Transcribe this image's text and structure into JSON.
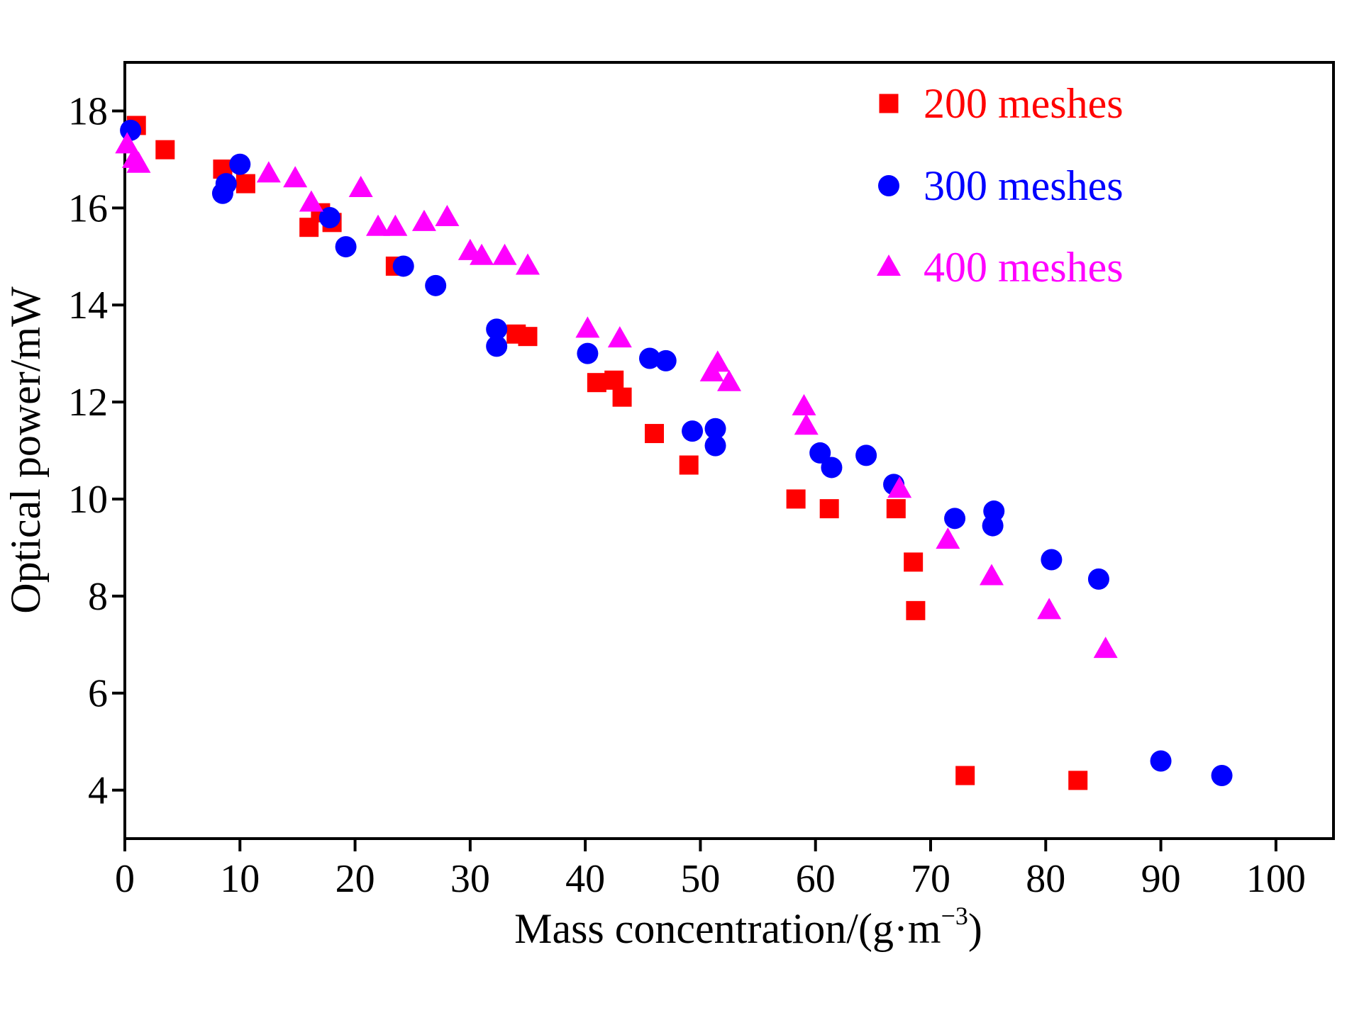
{
  "chart_data": {
    "type": "scatter",
    "title": "",
    "xlabel": "Mass concentration/(g·m",
    "xlabel_sup": "−3",
    "xlabel_end": ")",
    "ylabel": "Optical power/mW",
    "xlim": [
      0,
      105
    ],
    "ylim": [
      3,
      19
    ],
    "xticks": [
      0,
      10,
      20,
      30,
      40,
      50,
      60,
      70,
      80,
      90,
      100
    ],
    "yticks": [
      4,
      6,
      8,
      10,
      12,
      14,
      16,
      18
    ],
    "xtick_labels": [
      "0",
      "10",
      "20",
      "30",
      "40",
      "50",
      "60",
      "70",
      "80",
      "90",
      "100"
    ],
    "ytick_labels": [
      "4",
      "6",
      "8",
      "10",
      "12",
      "14",
      "16",
      "18"
    ],
    "grid": false,
    "legend_position": "top-right",
    "series": [
      {
        "name": "200 meshes",
        "marker": "square",
        "color": "#ff0000",
        "points": [
          [
            1.0,
            17.7
          ],
          [
            3.5,
            17.2
          ],
          [
            8.5,
            16.8
          ],
          [
            10.5,
            16.5
          ],
          [
            16.0,
            15.6
          ],
          [
            17.0,
            15.9
          ],
          [
            18.0,
            15.7
          ],
          [
            23.5,
            14.8
          ],
          [
            34.0,
            13.4
          ],
          [
            35.0,
            13.35
          ],
          [
            41.0,
            12.4
          ],
          [
            42.5,
            12.45
          ],
          [
            43.2,
            12.1
          ],
          [
            46.0,
            11.35
          ],
          [
            49.0,
            10.7
          ],
          [
            58.3,
            10.0
          ],
          [
            61.2,
            9.8
          ],
          [
            67.0,
            9.8
          ],
          [
            68.5,
            8.7
          ],
          [
            68.7,
            7.7
          ],
          [
            73.0,
            4.3
          ],
          [
            82.8,
            4.2
          ]
        ]
      },
      {
        "name": "300 meshes",
        "marker": "circle",
        "color": "#0000ff",
        "points": [
          [
            0.5,
            17.6
          ],
          [
            8.5,
            16.3
          ],
          [
            8.8,
            16.5
          ],
          [
            10.0,
            16.9
          ],
          [
            17.8,
            15.8
          ],
          [
            19.2,
            15.2
          ],
          [
            24.2,
            14.8
          ],
          [
            27.0,
            14.4
          ],
          [
            32.3,
            13.5
          ],
          [
            32.3,
            13.15
          ],
          [
            40.2,
            13.0
          ],
          [
            45.6,
            12.9
          ],
          [
            47.0,
            12.85
          ],
          [
            49.3,
            11.4
          ],
          [
            51.3,
            11.45
          ],
          [
            51.3,
            11.1
          ],
          [
            60.4,
            10.95
          ],
          [
            61.4,
            10.65
          ],
          [
            64.4,
            10.9
          ],
          [
            66.8,
            10.3
          ],
          [
            72.1,
            9.6
          ],
          [
            75.4,
            9.45
          ],
          [
            75.5,
            9.75
          ],
          [
            80.5,
            8.75
          ],
          [
            84.6,
            8.35
          ],
          [
            90.0,
            4.6
          ],
          [
            95.3,
            4.3
          ]
        ]
      },
      {
        "name": "400 meshes",
        "marker": "triangle",
        "color": "#ff00ff",
        "points": [
          [
            0.2,
            17.3
          ],
          [
            0.8,
            17.0
          ],
          [
            1.2,
            16.9
          ],
          [
            12.5,
            16.7
          ],
          [
            14.8,
            16.6
          ],
          [
            16.2,
            16.1
          ],
          [
            20.5,
            16.4
          ],
          [
            22.0,
            15.6
          ],
          [
            23.5,
            15.6
          ],
          [
            26.0,
            15.7
          ],
          [
            28.0,
            15.8
          ],
          [
            30.0,
            15.1
          ],
          [
            31.0,
            15.0
          ],
          [
            33.0,
            15.0
          ],
          [
            35.0,
            14.8
          ],
          [
            40.2,
            13.5
          ],
          [
            43.0,
            13.3
          ],
          [
            51.0,
            12.6
          ],
          [
            51.5,
            12.8
          ],
          [
            52.5,
            12.4
          ],
          [
            59.0,
            11.9
          ],
          [
            59.2,
            11.5
          ],
          [
            67.3,
            10.2
          ],
          [
            71.5,
            9.15
          ],
          [
            75.3,
            8.4
          ],
          [
            80.3,
            7.7
          ],
          [
            85.2,
            6.9
          ]
        ]
      }
    ]
  }
}
